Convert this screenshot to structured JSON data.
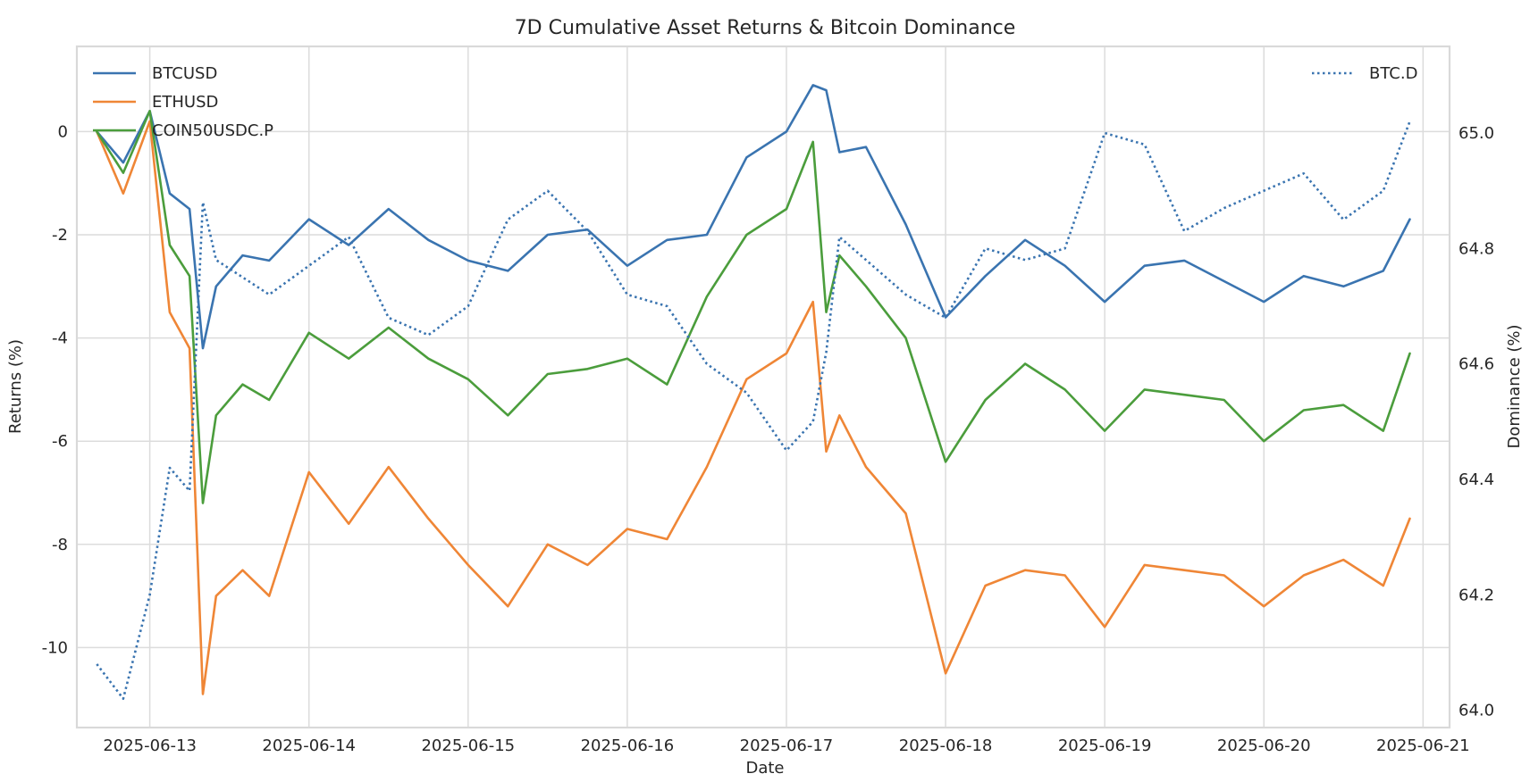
{
  "chart_data": {
    "type": "line",
    "title": "7D Cumulative Asset Returns & Bitcoin Dominance",
    "xlabel": "Date",
    "ylabel": "Returns (%)",
    "y2label": "Dominance (%)",
    "x_ticks": [
      "2025-06-13",
      "2025-06-14",
      "2025-06-15",
      "2025-06-16",
      "2025-06-17",
      "2025-06-18",
      "2025-06-19",
      "2025-06-20",
      "2025-06-21"
    ],
    "x_range": [
      "2025-06-12T13:00",
      "2025-06-21T04:00"
    ],
    "y_ticks": [
      0,
      -2,
      -4,
      -6,
      -8,
      -10
    ],
    "y_tick_labels": [
      "0",
      "-2",
      "-4",
      "-6",
      "-8",
      "-10"
    ],
    "ylim": [
      -11.55,
      1.65
    ],
    "y2_ticks": [
      65.0,
      64.8,
      64.6,
      64.4,
      64.2,
      64.0
    ],
    "y2_tick_labels": [
      "65.0",
      "64.8",
      "64.6",
      "64.4",
      "64.2",
      "64.0"
    ],
    "y2lim": [
      63.97,
      65.15
    ],
    "grid": true,
    "legend_left": "top-left",
    "legend_right": "top-right",
    "series": [
      {
        "name": "BTCUSD",
        "axis": "left",
        "color": "#3a74b0",
        "style": "solid",
        "x": [
          "2025-06-12T16:00",
          "2025-06-12T20:00",
          "2025-06-13T00:00",
          "2025-06-13T03:00",
          "2025-06-13T06:00",
          "2025-06-13T08:00",
          "2025-06-13T10:00",
          "2025-06-13T14:00",
          "2025-06-13T18:00",
          "2025-06-14T00:00",
          "2025-06-14T06:00",
          "2025-06-14T12:00",
          "2025-06-14T18:00",
          "2025-06-15T00:00",
          "2025-06-15T06:00",
          "2025-06-15T12:00",
          "2025-06-15T18:00",
          "2025-06-16T00:00",
          "2025-06-16T06:00",
          "2025-06-16T12:00",
          "2025-06-16T18:00",
          "2025-06-17T00:00",
          "2025-06-17T04:00",
          "2025-06-17T06:00",
          "2025-06-17T08:00",
          "2025-06-17T12:00",
          "2025-06-17T18:00",
          "2025-06-18T00:00",
          "2025-06-18T06:00",
          "2025-06-18T12:00",
          "2025-06-18T18:00",
          "2025-06-19T00:00",
          "2025-06-19T06:00",
          "2025-06-19T12:00",
          "2025-06-19T18:00",
          "2025-06-20T00:00",
          "2025-06-20T06:00",
          "2025-06-20T12:00",
          "2025-06-20T18:00",
          "2025-06-20T22:00"
        ],
        "y": [
          0,
          -0.6,
          0.4,
          -1.2,
          -1.5,
          -4.2,
          -3.0,
          -2.4,
          -2.5,
          -1.7,
          -2.2,
          -1.5,
          -2.1,
          -2.5,
          -2.7,
          -2.0,
          -1.9,
          -2.6,
          -2.1,
          -2.0,
          -0.5,
          0,
          0.9,
          0.8,
          -0.4,
          -0.3,
          -1.8,
          -3.6,
          -2.8,
          -2.1,
          -2.6,
          -3.3,
          -2.6,
          -2.5,
          -2.9,
          -3.3,
          -2.8,
          -3.0,
          -2.7,
          -1.7
        ]
      },
      {
        "name": "ETHUSD",
        "axis": "left",
        "color": "#ef8636",
        "style": "solid",
        "x": [
          "2025-06-12T16:00",
          "2025-06-12T20:00",
          "2025-06-13T00:00",
          "2025-06-13T03:00",
          "2025-06-13T06:00",
          "2025-06-13T08:00",
          "2025-06-13T10:00",
          "2025-06-13T14:00",
          "2025-06-13T18:00",
          "2025-06-14T00:00",
          "2025-06-14T06:00",
          "2025-06-14T12:00",
          "2025-06-14T18:00",
          "2025-06-15T00:00",
          "2025-06-15T06:00",
          "2025-06-15T12:00",
          "2025-06-15T18:00",
          "2025-06-16T00:00",
          "2025-06-16T06:00",
          "2025-06-16T12:00",
          "2025-06-16T18:00",
          "2025-06-17T00:00",
          "2025-06-17T04:00",
          "2025-06-17T06:00",
          "2025-06-17T08:00",
          "2025-06-17T12:00",
          "2025-06-17T18:00",
          "2025-06-18T00:00",
          "2025-06-18T06:00",
          "2025-06-18T12:00",
          "2025-06-18T18:00",
          "2025-06-19T00:00",
          "2025-06-19T06:00",
          "2025-06-19T12:00",
          "2025-06-19T18:00",
          "2025-06-20T00:00",
          "2025-06-20T06:00",
          "2025-06-20T12:00",
          "2025-06-20T18:00",
          "2025-06-20T22:00"
        ],
        "y": [
          0,
          -1.2,
          0.2,
          -3.5,
          -4.2,
          -10.9,
          -9.0,
          -8.5,
          -9.0,
          -6.6,
          -7.6,
          -6.5,
          -7.5,
          -8.4,
          -9.2,
          -8.0,
          -8.4,
          -7.7,
          -7.9,
          -6.5,
          -4.8,
          -4.3,
          -3.3,
          -6.2,
          -5.5,
          -6.5,
          -7.4,
          -10.5,
          -8.8,
          -8.5,
          -8.6,
          -9.6,
          -8.4,
          -8.5,
          -8.6,
          -9.2,
          -8.6,
          -8.3,
          -8.8,
          -7.5
        ]
      },
      {
        "name": "COIN50USDC.P",
        "axis": "left",
        "color": "#4b9d3c",
        "style": "solid",
        "x": [
          "2025-06-12T16:00",
          "2025-06-12T20:00",
          "2025-06-13T00:00",
          "2025-06-13T03:00",
          "2025-06-13T06:00",
          "2025-06-13T08:00",
          "2025-06-13T10:00",
          "2025-06-13T14:00",
          "2025-06-13T18:00",
          "2025-06-14T00:00",
          "2025-06-14T06:00",
          "2025-06-14T12:00",
          "2025-06-14T18:00",
          "2025-06-15T00:00",
          "2025-06-15T06:00",
          "2025-06-15T12:00",
          "2025-06-15T18:00",
          "2025-06-16T00:00",
          "2025-06-16T06:00",
          "2025-06-16T12:00",
          "2025-06-16T18:00",
          "2025-06-17T00:00",
          "2025-06-17T04:00",
          "2025-06-17T06:00",
          "2025-06-17T08:00",
          "2025-06-17T12:00",
          "2025-06-17T18:00",
          "2025-06-18T00:00",
          "2025-06-18T06:00",
          "2025-06-18T12:00",
          "2025-06-18T18:00",
          "2025-06-19T00:00",
          "2025-06-19T06:00",
          "2025-06-19T12:00",
          "2025-06-19T18:00",
          "2025-06-20T00:00",
          "2025-06-20T06:00",
          "2025-06-20T12:00",
          "2025-06-20T18:00",
          "2025-06-20T22:00"
        ],
        "y": [
          0,
          -0.8,
          0.4,
          -2.2,
          -2.8,
          -7.2,
          -5.5,
          -4.9,
          -5.2,
          -3.9,
          -4.4,
          -3.8,
          -4.4,
          -4.8,
          -5.5,
          -4.7,
          -4.6,
          -4.4,
          -4.9,
          -3.2,
          -2.0,
          -1.5,
          -0.2,
          -3.5,
          -2.4,
          -3.0,
          -4.0,
          -6.4,
          -5.2,
          -4.5,
          -5.0,
          -5.8,
          -5.0,
          -5.1,
          -5.2,
          -6.0,
          -5.4,
          -5.3,
          -5.8,
          -4.3
        ]
      },
      {
        "name": "BTC.D",
        "axis": "right",
        "color": "#3a74b0",
        "style": "dotted",
        "x": [
          "2025-06-12T16:00",
          "2025-06-12T20:00",
          "2025-06-13T00:00",
          "2025-06-13T03:00",
          "2025-06-13T06:00",
          "2025-06-13T08:00",
          "2025-06-13T10:00",
          "2025-06-13T14:00",
          "2025-06-13T18:00",
          "2025-06-14T00:00",
          "2025-06-14T06:00",
          "2025-06-14T12:00",
          "2025-06-14T18:00",
          "2025-06-15T00:00",
          "2025-06-15T06:00",
          "2025-06-15T12:00",
          "2025-06-15T18:00",
          "2025-06-16T00:00",
          "2025-06-16T06:00",
          "2025-06-16T12:00",
          "2025-06-16T18:00",
          "2025-06-17T00:00",
          "2025-06-17T04:00",
          "2025-06-17T06:00",
          "2025-06-17T08:00",
          "2025-06-17T12:00",
          "2025-06-17T18:00",
          "2025-06-18T00:00",
          "2025-06-18T06:00",
          "2025-06-18T12:00",
          "2025-06-18T18:00",
          "2025-06-19T00:00",
          "2025-06-19T06:00",
          "2025-06-19T12:00",
          "2025-06-19T18:00",
          "2025-06-20T00:00",
          "2025-06-20T06:00",
          "2025-06-20T12:00",
          "2025-06-20T18:00",
          "2025-06-20T22:00"
        ],
        "y": [
          64.08,
          64.02,
          64.2,
          64.42,
          64.38,
          64.88,
          64.78,
          64.75,
          64.72,
          64.77,
          64.82,
          64.68,
          64.65,
          64.7,
          64.85,
          64.9,
          64.83,
          64.72,
          64.7,
          64.6,
          64.55,
          64.45,
          64.5,
          64.62,
          64.82,
          64.78,
          64.72,
          64.68,
          64.8,
          64.78,
          64.8,
          65.0,
          64.98,
          64.83,
          64.87,
          64.9,
          64.93,
          64.85,
          64.9,
          65.02
        ]
      }
    ]
  }
}
